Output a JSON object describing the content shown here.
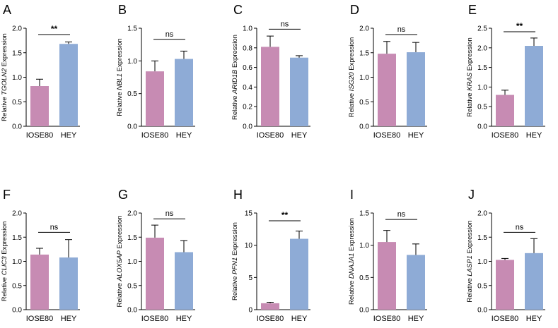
{
  "colors": {
    "control": "#c78bb3",
    "treated": "#8eabd6",
    "axis": "#000000"
  },
  "chart_data": [
    {
      "panel": "A",
      "type": "bar",
      "gene": "TGOLN2",
      "ylabel_prefix": "Relative ",
      "ylabel_suffix": " Expression",
      "categories": [
        "IOSE80",
        "HEY"
      ],
      "values": [
        0.82,
        1.68
      ],
      "errors": [
        0.14,
        0.04
      ],
      "ylim": [
        0,
        2.0
      ],
      "yticks": [
        "0.0",
        "0.5",
        "1.0",
        "1.5",
        "2.0"
      ],
      "significance": "**",
      "sig_y": 1.87
    },
    {
      "panel": "B",
      "type": "bar",
      "gene": "NBL1",
      "ylabel_prefix": "Relative ",
      "ylabel_suffix": " Expression",
      "categories": [
        "IOSE80",
        "HEY"
      ],
      "values": [
        0.84,
        1.03
      ],
      "errors": [
        0.16,
        0.12
      ],
      "ylim": [
        0,
        1.5
      ],
      "yticks": [
        "0.0",
        "0.5",
        "1.0",
        "1.5"
      ],
      "significance": "ns",
      "sig_y": 1.33
    },
    {
      "panel": "C",
      "type": "bar",
      "gene": "ARID1B",
      "ylabel_prefix": "Relative ",
      "ylabel_suffix": " Expression",
      "categories": [
        "IOSE80",
        "HEY"
      ],
      "values": [
        0.81,
        0.7
      ],
      "errors": [
        0.11,
        0.02
      ],
      "ylim": [
        0,
        1.0
      ],
      "yticks": [
        "0.0",
        "0.2",
        "0.4",
        "0.6",
        "0.8",
        "1.0"
      ],
      "significance": "ns",
      "sig_y": 0.99
    },
    {
      "panel": "D",
      "type": "bar",
      "gene": "ISG20",
      "ylabel_prefix": "Relative ",
      "ylabel_suffix": " Expression",
      "categories": [
        "IOSE80",
        "HEY"
      ],
      "values": [
        1.48,
        1.51
      ],
      "errors": [
        0.25,
        0.2
      ],
      "ylim": [
        0,
        2.0
      ],
      "yticks": [
        "0.0",
        "0.5",
        "1.0",
        "1.5",
        "2.0"
      ],
      "significance": "ns",
      "sig_y": 1.87
    },
    {
      "panel": "E",
      "type": "bar",
      "gene": "KRAS",
      "ylabel_prefix": "Relative ",
      "ylabel_suffix": " Expression",
      "categories": [
        "IOSE80",
        "HEY"
      ],
      "values": [
        0.8,
        2.05
      ],
      "errors": [
        0.12,
        0.2
      ],
      "ylim": [
        0,
        2.5
      ],
      "yticks": [
        "0.0",
        "0.5",
        "1.0",
        "1.5",
        "2.0",
        "2.5"
      ],
      "significance": "**",
      "sig_y": 2.41
    },
    {
      "panel": "F",
      "type": "bar",
      "gene": "CLIC3",
      "ylabel_prefix": "Relative ",
      "ylabel_suffix": " Expression",
      "categories": [
        "IOSE80",
        "HEY"
      ],
      "values": [
        1.14,
        1.08
      ],
      "errors": [
        0.13,
        0.37
      ],
      "ylim": [
        0,
        2.0
      ],
      "yticks": [
        "0.0",
        "0.5",
        "1.0",
        "1.5",
        "2.0"
      ],
      "significance": "ns",
      "sig_y": 1.6
    },
    {
      "panel": "G",
      "type": "bar",
      "gene": "ALOX5AP",
      "ylabel_prefix": "Relative ",
      "ylabel_suffix": " Expression",
      "categories": [
        "IOSE80",
        "HEY"
      ],
      "values": [
        1.49,
        1.19
      ],
      "errors": [
        0.26,
        0.24
      ],
      "ylim": [
        0,
        2.0
      ],
      "yticks": [
        "0.0",
        "0.5",
        "1.0",
        "1.5",
        "2.0"
      ],
      "significance": "ns",
      "sig_y": 1.88
    },
    {
      "panel": "H",
      "type": "bar",
      "gene": "PFN1",
      "ylabel_prefix": "Relative ",
      "ylabel_suffix": " Expression",
      "categories": [
        "IOSE80",
        "HEY"
      ],
      "values": [
        1.0,
        11.0
      ],
      "errors": [
        0.15,
        1.2
      ],
      "ylim": [
        0,
        15
      ],
      "yticks": [
        "0",
        "5",
        "10",
        "15"
      ],
      "significance": "**",
      "sig_y": 13.8
    },
    {
      "panel": "I",
      "type": "bar",
      "gene": "DNAJA1",
      "ylabel_prefix": "Relative ",
      "ylabel_suffix": " Expression",
      "categories": [
        "IOSE80",
        "HEY"
      ],
      "values": [
        1.05,
        0.85
      ],
      "errors": [
        0.18,
        0.17
      ],
      "ylim": [
        0,
        1.5
      ],
      "yticks": [
        "0.0",
        "0.5",
        "1.0",
        "1.5"
      ],
      "significance": "ns",
      "sig_y": 1.4
    },
    {
      "panel": "J",
      "type": "bar",
      "gene": "LASP1",
      "ylabel_prefix": "Relative ",
      "ylabel_suffix": " Expression",
      "categories": [
        "IOSE80",
        "HEY"
      ],
      "values": [
        1.03,
        1.17
      ],
      "errors": [
        0.03,
        0.3
      ],
      "ylim": [
        0,
        2.0
      ],
      "yticks": [
        "0.0",
        "0.5",
        "1.0",
        "1.5",
        "2.0"
      ],
      "significance": "ns",
      "sig_y": 1.6
    }
  ]
}
